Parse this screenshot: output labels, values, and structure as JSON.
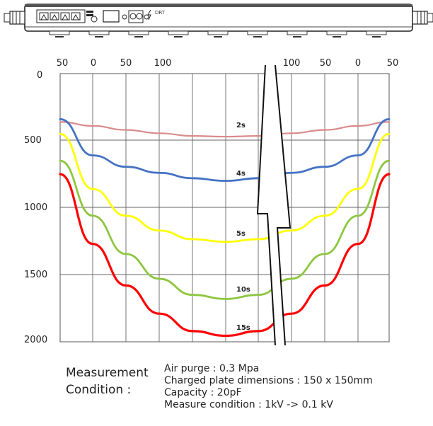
{
  "device": {
    "label": "DRT",
    "icons": [
      "port-icon",
      "port-icon",
      "port-icon",
      "port-icon",
      "led-icon",
      "display-icon",
      "connector-icon",
      "bolt-icon"
    ]
  },
  "chart_data": {
    "type": "line",
    "title": "",
    "xlabel": "",
    "ylabel": "",
    "x_ticks_left": [
      "50",
      "0",
      "50",
      "100"
    ],
    "x_ticks_right": [
      "100",
      "50",
      "0",
      "50"
    ],
    "y_ticks": [
      "0",
      "500",
      "1000",
      "1500",
      "2000"
    ],
    "ylim": [
      0,
      2000
    ],
    "x": [
      -50,
      -40,
      -30,
      -20,
      -10,
      0,
      10,
      20,
      30,
      40,
      50
    ],
    "grid": true,
    "axis_break": true,
    "series": [
      {
        "name": "2s",
        "color": "#d98b8b",
        "values": [
          360,
          390,
          420,
          445,
          465,
          470,
          465,
          445,
          420,
          390,
          360
        ]
      },
      {
        "name": "4s",
        "color": "#4472c4",
        "values": [
          340,
          610,
          695,
          740,
          780,
          800,
          780,
          740,
          695,
          610,
          340
        ]
      },
      {
        "name": "5s",
        "color": "#ffff00",
        "values": [
          450,
          860,
          1060,
          1170,
          1235,
          1255,
          1235,
          1170,
          1060,
          860,
          450
        ]
      },
      {
        "name": "10s",
        "color": "#8dc63f",
        "values": [
          650,
          1060,
          1345,
          1530,
          1650,
          1680,
          1650,
          1530,
          1345,
          1060,
          650
        ]
      },
      {
        "name": "15s",
        "color": "#ff0000",
        "values": [
          750,
          1270,
          1580,
          1790,
          1920,
          1955,
          1920,
          1790,
          1580,
          1270,
          750
        ]
      }
    ]
  },
  "conditions": {
    "title_line1": "Measurement",
    "title_line2": "Condition :",
    "lines": [
      "Air purge : 0.3 Mpa",
      "Charged plate dimensions : 150 x 150mm",
      "Capacity : 20pF",
      "Measure condition : 1kV -> 0.1 kV"
    ]
  }
}
